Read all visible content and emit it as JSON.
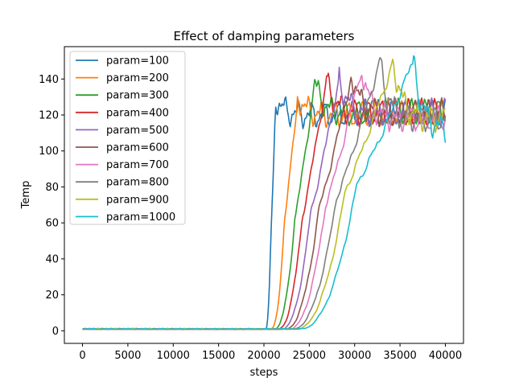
{
  "chart_data": {
    "type": "line",
    "title": "Effect of damping parameters",
    "xlabel": "steps",
    "ylabel": "Temp",
    "xlim": [
      -2000,
      42000
    ],
    "ylim": [
      -7,
      158
    ],
    "xticks": [
      0,
      5000,
      10000,
      15000,
      20000,
      25000,
      30000,
      35000,
      40000
    ],
    "yticks": [
      0,
      20,
      40,
      60,
      80,
      100,
      120,
      140
    ],
    "x_range": [
      0,
      40000
    ],
    "grid": false,
    "legend_position": "top-left",
    "series": [
      {
        "name": "param=100",
        "color": "#1f77b4",
        "rise_start": 20200,
        "rise_end": 21300,
        "peak": 129,
        "mid": 50,
        "steady": 120
      },
      {
        "name": "param=200",
        "color": "#ff7f0e",
        "rise_start": 20800,
        "rise_end": 23700,
        "peak": 131,
        "mid": 60,
        "steady": 120
      },
      {
        "name": "param=300",
        "color": "#2ca02c",
        "rise_start": 21200,
        "rise_end": 25600,
        "peak": 138,
        "mid": 62,
        "steady": 121
      },
      {
        "name": "param=400",
        "color": "#d62728",
        "rise_start": 21600,
        "rise_end": 26900,
        "peak": 140,
        "mid": 64,
        "steady": 121
      },
      {
        "name": "param=500",
        "color": "#9467bd",
        "rise_start": 22000,
        "rise_end": 28300,
        "peak": 141,
        "mid": 66,
        "steady": 121
      },
      {
        "name": "param=600",
        "color": "#8c564b",
        "rise_start": 22400,
        "rise_end": 29700,
        "peak": 143,
        "mid": 68,
        "steady": 121
      },
      {
        "name": "param=700",
        "color": "#e377c2",
        "rise_start": 22800,
        "rise_end": 30800,
        "peak": 147,
        "mid": 70,
        "steady": 118
      },
      {
        "name": "param=800",
        "color": "#7f7f7f",
        "rise_start": 23200,
        "rise_end": 32800,
        "peak": 150,
        "mid": 74,
        "steady": 118
      },
      {
        "name": "param=900",
        "color": "#bcbd22",
        "rise_start": 23600,
        "rise_end": 34300,
        "peak": 150,
        "mid": 78,
        "steady": 118
      },
      {
        "name": "param=1000",
        "color": "#17becf",
        "rise_start": 24000,
        "rise_end": 36500,
        "peak": 150,
        "mid": 82,
        "steady": 112
      }
    ]
  }
}
